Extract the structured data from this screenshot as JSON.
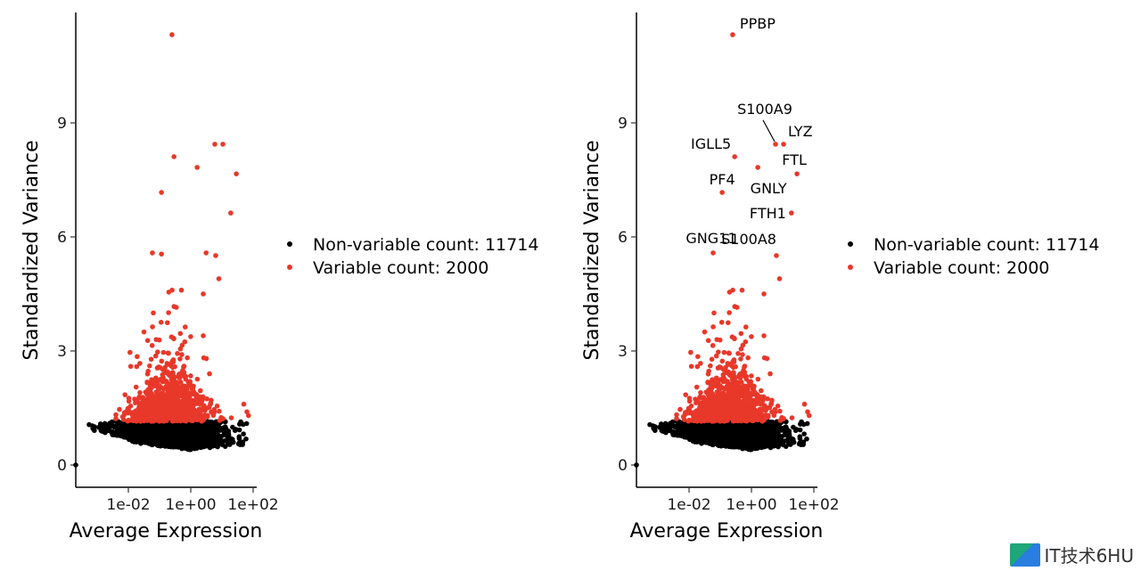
{
  "chart_data": [
    {
      "type": "scatter",
      "panel": "left",
      "xlabel": "Average Expression",
      "ylabel": "Standardized Variance",
      "x_scale": "log10",
      "x_ticks": [
        "1e-02",
        "1e+00",
        "1e+02"
      ],
      "x_tick_values": [
        0.01,
        1,
        100
      ],
      "y_ticks": [
        "0",
        "3",
        "6",
        "9"
      ],
      "y_tick_values": [
        0,
        3,
        6,
        9
      ],
      "ylim": [
        -0.6,
        11.9
      ],
      "grid": false,
      "legend_position": "right",
      "series": [
        {
          "name": "Non-variable count: 11714",
          "color": "#000000"
        },
        {
          "name": "Variable count: 2000",
          "color": "#e8382a"
        }
      ],
      "highlight_points": [
        {
          "x": 0.25,
          "y": 11.32
        },
        {
          "x": 5.9,
          "y": 8.44
        },
        {
          "x": 10.7,
          "y": 8.44
        },
        {
          "x": 0.29,
          "y": 8.11
        },
        {
          "x": 1.6,
          "y": 7.83
        },
        {
          "x": 28.8,
          "y": 7.66
        },
        {
          "x": 0.115,
          "y": 7.17
        },
        {
          "x": 19.1,
          "y": 6.63
        },
        {
          "x": 0.059,
          "y": 5.58
        },
        {
          "x": 0.115,
          "y": 5.55
        },
        {
          "x": 3.1,
          "y": 5.58
        },
        {
          "x": 6.3,
          "y": 5.51
        }
      ]
    },
    {
      "type": "scatter",
      "panel": "right",
      "xlabel": "Average Expression",
      "ylabel": "Standardized Variance",
      "x_scale": "log10",
      "x_ticks": [
        "1e-02",
        "1e+00",
        "1e+02"
      ],
      "x_tick_values": [
        0.01,
        1,
        100
      ],
      "y_ticks": [
        "0",
        "3",
        "6",
        "9"
      ],
      "y_tick_values": [
        0,
        3,
        6,
        9
      ],
      "ylim": [
        -0.6,
        11.9
      ],
      "grid": false,
      "legend_position": "right",
      "series": [
        {
          "name": "Non-variable count: 11714",
          "color": "#000000"
        },
        {
          "name": "Variable count: 2000",
          "color": "#e8382a"
        }
      ],
      "labels": [
        {
          "gene": "PPBP",
          "x": 0.25,
          "y": 11.32
        },
        {
          "gene": "S100A9",
          "x": 5.9,
          "y": 8.44
        },
        {
          "gene": "LYZ",
          "x": 10.7,
          "y": 8.44
        },
        {
          "gene": "IGLL5",
          "x": 0.29,
          "y": 8.11
        },
        {
          "gene": "GNLY",
          "x": 1.6,
          "y": 7.83
        },
        {
          "gene": "FTL",
          "x": 28.8,
          "y": 7.66
        },
        {
          "gene": "PF4",
          "x": 0.115,
          "y": 7.17
        },
        {
          "gene": "FTH1",
          "x": 19.1,
          "y": 6.63
        },
        {
          "gene": "GNG11",
          "x": 0.059,
          "y": 5.58
        },
        {
          "gene": "S100A8",
          "x": 6.3,
          "y": 5.51
        }
      ]
    }
  ],
  "watermark": "IT技术6HU"
}
